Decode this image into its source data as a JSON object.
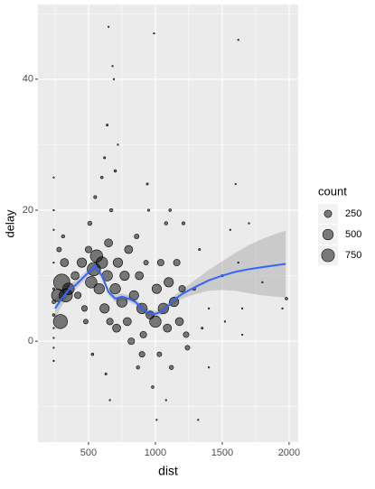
{
  "chart_data": {
    "type": "scatter",
    "x_label": "dist",
    "y_label": "delay",
    "xlim": [
      122,
      2068
    ],
    "ylim": [
      -15.4,
      51.4
    ],
    "xticks": [
      500,
      1000,
      1500,
      2000
    ],
    "yticks": [
      0,
      20,
      40
    ],
    "x_minor_ticks": [
      250,
      750,
      1250,
      1750
    ],
    "y_minor_ticks": [
      -10,
      10,
      30,
      50
    ],
    "grid": true,
    "points": {
      "color": "#000000",
      "x": [
        240,
        240,
        240,
        240,
        240,
        240,
        240,
        240,
        240,
        240,
        240,
        270,
        290,
        300,
        330,
        350,
        320,
        280,
        310,
        400,
        420,
        450,
        470,
        500,
        520,
        540,
        560,
        510,
        480,
        530,
        550,
        580,
        600,
        620,
        640,
        650,
        660,
        670,
        600,
        620,
        640,
        650,
        680,
        690,
        630,
        660,
        700,
        710,
        720,
        700,
        720,
        750,
        770,
        790,
        800,
        820,
        840,
        860,
        870,
        880,
        900,
        900,
        910,
        930,
        940,
        950,
        960,
        980,
        990,
        1000,
        1010,
        1030,
        1040,
        1060,
        1080,
        1090,
        1100,
        1110,
        1120,
        1140,
        1160,
        1180,
        1200,
        1210,
        1230,
        1240,
        1010,
        1080,
        1290,
        1330,
        1350,
        1400,
        1400,
        1500,
        1520,
        1560,
        1600,
        1620,
        1620,
        1650,
        1650,
        1700,
        1800,
        1950,
        1980,
        1320
      ],
      "y": [
        -1,
        2,
        4,
        6,
        8,
        12,
        17,
        20,
        25,
        -3,
        0.5,
        7,
        3,
        9,
        7,
        8,
        12,
        14,
        16,
        10,
        7,
        12,
        5,
        14,
        9,
        11,
        13,
        18,
        3,
        -2,
        22,
        8,
        12,
        5,
        10,
        15,
        3,
        20,
        25,
        28,
        33,
        48,
        42,
        40,
        -5,
        -9,
        8,
        2,
        12,
        26,
        30,
        6,
        10,
        3,
        14,
        0,
        7,
        16,
        -4,
        10,
        5,
        -2,
        1,
        12,
        24,
        20,
        4,
        -7,
        47,
        3,
        8,
        -2,
        12,
        5,
        18,
        2,
        9,
        20,
        -4,
        6,
        12,
        3,
        8,
        18,
        1,
        -1,
        -12,
        -9,
        8,
        14,
        2,
        5,
        -4,
        10,
        3,
        17,
        24,
        46,
        12,
        5,
        1,
        18,
        9,
        5,
        6.5,
        -12
      ],
      "count": [
        5,
        10,
        30,
        60,
        20,
        10,
        5,
        3,
        3,
        3,
        8,
        700,
        900,
        1200,
        800,
        600,
        300,
        100,
        50,
        300,
        200,
        400,
        150,
        200,
        600,
        800,
        700,
        80,
        100,
        30,
        40,
        500,
        600,
        400,
        500,
        300,
        200,
        50,
        30,
        20,
        20,
        5,
        5,
        5,
        20,
        10,
        500,
        300,
        400,
        30,
        10,
        500,
        400,
        300,
        300,
        200,
        400,
        100,
        50,
        300,
        500,
        150,
        200,
        100,
        20,
        20,
        300,
        30,
        10,
        600,
        400,
        100,
        200,
        500,
        50,
        300,
        400,
        30,
        80,
        400,
        200,
        300,
        200,
        40,
        150,
        100,
        5,
        10,
        40,
        20,
        20,
        10,
        10,
        20,
        10,
        5,
        5,
        3,
        10,
        5,
        5,
        5,
        5,
        10,
        30,
        5
      ]
    },
    "smooth": {
      "color": "#3366FF",
      "band_color": "#999999",
      "x": [
        250,
        300,
        350,
        400,
        450,
        500,
        550,
        600,
        650,
        700,
        750,
        800,
        850,
        900,
        950,
        1000,
        1050,
        1100,
        1150,
        1200,
        1300,
        1400,
        1500,
        1600,
        1700,
        1800,
        1900,
        1975
      ],
      "y": [
        5,
        6.5,
        7.8,
        8.5,
        9.5,
        10.5,
        11.5,
        10,
        7.5,
        6.5,
        6.8,
        6.5,
        6,
        5,
        4.3,
        4.2,
        4.5,
        5.5,
        6.5,
        7.2,
        8.3,
        9.3,
        10,
        10.6,
        11,
        11.3,
        11.6,
        11.8
      ],
      "lower": [
        3.5,
        5.4,
        6.9,
        7.8,
        8.9,
        10,
        11,
        9.5,
        7,
        6,
        6.3,
        6,
        5.5,
        4.5,
        3.8,
        3.7,
        4,
        5,
        5.9,
        6.5,
        7.2,
        7.7,
        7.8,
        7.7,
        7.3,
        7,
        6.8,
        6.7
      ],
      "upper": [
        6.5,
        7.6,
        8.7,
        9.2,
        10.1,
        11,
        12,
        10.5,
        8,
        7,
        7.3,
        7,
        6.5,
        5.5,
        4.8,
        4.7,
        5,
        6,
        7.1,
        7.9,
        9.4,
        10.9,
        12.2,
        13.5,
        14.7,
        15.6,
        16.4,
        16.9
      ]
    },
    "legend": {
      "title": "count",
      "values": [
        250,
        500,
        750
      ]
    }
  }
}
